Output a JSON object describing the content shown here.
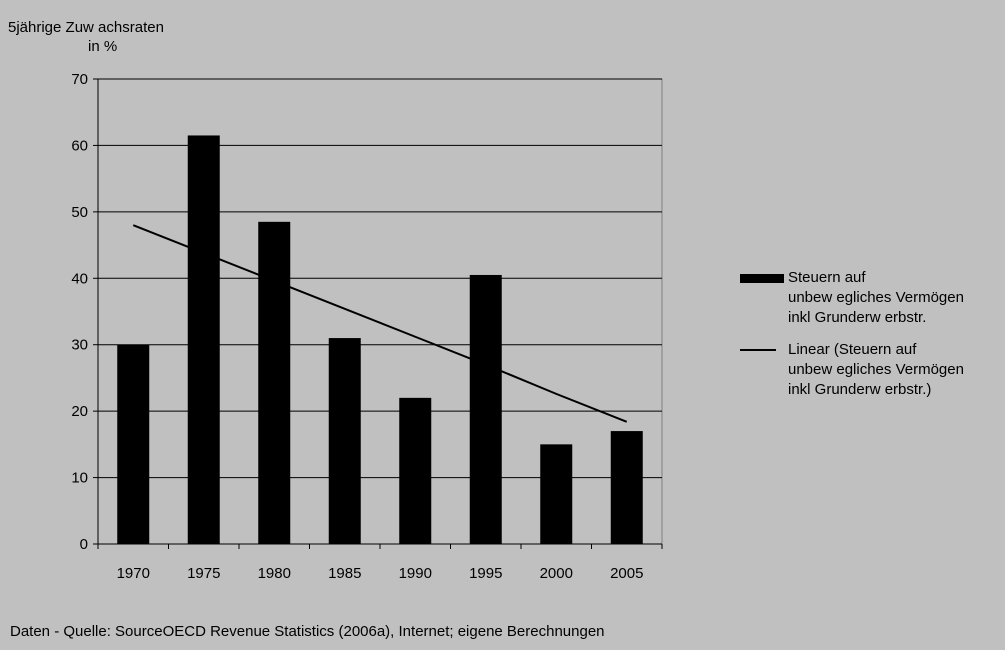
{
  "chart_data": {
    "type": "bar",
    "ytitle_line1": "5jährige Zuw achsraten",
    "ytitle_line2": "in %",
    "categories": [
      "1970",
      "1975",
      "1980",
      "1985",
      "1990",
      "1995",
      "2000",
      "2005"
    ],
    "series": [
      {
        "name": "Steuern auf unbew egliches Vermögen inkl Grunderw erbstr.",
        "type": "bar",
        "color": "#000000",
        "values": [
          30,
          61.5,
          48.5,
          31,
          22,
          40.5,
          15,
          17
        ]
      },
      {
        "name": "Linear (Steuern auf unbew egliches Vermögen inkl Grunderw erbstr.)",
        "type": "line",
        "color": "#000000",
        "values": [
          48,
          43.8,
          39.6,
          35.4,
          31.2,
          27,
          22.6,
          18.4
        ]
      }
    ],
    "ylim": [
      0,
      70
    ],
    "yticks": [
      0,
      10,
      20,
      30,
      40,
      50,
      60,
      70
    ],
    "grid": true,
    "legend_position": "right",
    "plot_background": "#c0c0c0"
  },
  "legend": {
    "bar_lines": [
      "Steuern auf",
      "unbew egliches Vermögen",
      "inkl Grunderw erbstr."
    ],
    "line_lines": [
      "Linear (Steuern auf",
      "unbew egliches Vermögen",
      "inkl Grunderw erbstr.)"
    ]
  },
  "source_note": "Daten - Quelle: SourceOECD Revenue Statistics (2006a), Internet; eigene Berechnungen"
}
